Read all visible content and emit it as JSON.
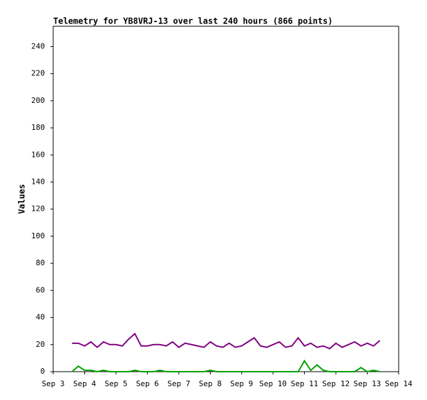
{
  "chart_data": {
    "type": "line",
    "title": "Telemetry for YB8VRJ-13 over last 240 hours (866 points)",
    "y_label": "Values",
    "x": [
      3.6,
      3.8,
      4.0,
      4.2,
      4.4,
      4.6,
      4.8,
      5.0,
      5.2,
      5.4,
      5.6,
      5.8,
      6.0,
      6.2,
      6.4,
      6.6,
      6.8,
      7.0,
      7.2,
      7.4,
      7.6,
      7.8,
      8.0,
      8.2,
      8.4,
      8.6,
      8.8,
      9.0,
      9.2,
      9.4,
      9.6,
      9.8,
      10.0,
      10.2,
      10.4,
      10.6,
      10.8,
      11.0,
      11.2,
      11.4,
      11.6,
      11.8,
      12.0,
      12.2,
      12.4,
      12.6,
      12.8,
      13.0,
      13.2,
      13.4
    ],
    "series": [
      {
        "color": "#800080",
        "values": [
          21,
          21,
          19,
          22,
          18,
          22,
          20,
          20,
          19,
          24,
          28,
          19,
          19,
          20,
          20,
          19,
          22,
          18,
          21,
          20,
          19,
          18,
          22,
          19,
          18,
          21,
          18,
          19,
          22,
          25,
          19,
          18,
          20,
          22,
          18,
          19,
          25,
          19,
          21,
          18,
          19,
          17,
          21,
          18,
          20,
          22,
          19,
          21,
          19,
          23
        ]
      },
      {
        "color": "#00a000",
        "values": [
          0,
          4,
          1,
          1,
          0,
          1,
          0,
          0,
          0,
          0,
          1,
          0,
          0,
          0,
          1,
          0,
          0,
          0,
          0,
          0,
          0,
          0,
          1,
          0,
          0,
          0,
          0,
          0,
          0,
          0,
          0,
          0,
          0,
          0,
          0,
          0,
          0,
          8,
          1,
          5,
          1,
          0,
          0,
          0,
          0,
          0,
          3,
          0,
          1,
          0
        ]
      }
    ],
    "xlim": [
      3,
      14
    ],
    "xticks": [
      {
        "value": 3,
        "label": "Sep 3"
      },
      {
        "value": 4,
        "label": "Sep 4"
      },
      {
        "value": 5,
        "label": "Sep 5"
      },
      {
        "value": 6,
        "label": "Sep 6"
      },
      {
        "value": 7,
        "label": "Sep 7"
      },
      {
        "value": 8,
        "label": "Sep 8"
      },
      {
        "value": 9,
        "label": "Sep 9"
      },
      {
        "value": 10,
        "label": "Sep 10"
      },
      {
        "value": 11,
        "label": "Sep 11"
      },
      {
        "value": 12,
        "label": "Sep 12"
      },
      {
        "value": 13,
        "label": "Sep 13"
      },
      {
        "value": 14,
        "label": "Sep 14"
      }
    ],
    "ylim": [
      0,
      255
    ],
    "yticks": [
      0,
      20,
      40,
      60,
      80,
      100,
      120,
      140,
      160,
      180,
      200,
      220,
      240
    ]
  }
}
